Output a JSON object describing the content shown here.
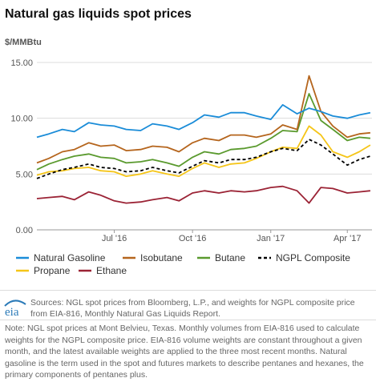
{
  "title": "Natural gas liquids spot prices",
  "chart_data": {
    "type": "line",
    "ylabel": "$/MMBtu",
    "ylim": [
      0,
      15
    ],
    "yticks": [
      "0.00",
      "5.00",
      "10.00",
      "15.00"
    ],
    "xticks": [
      "Jul '16",
      "Oct '16",
      "Jan '17",
      "Apr '17"
    ],
    "xrange": [
      "2016-04-01",
      "2017-04-30"
    ],
    "x": [
      "2016-04-01",
      "2016-04-15",
      "2016-05-01",
      "2016-05-15",
      "2016-06-01",
      "2016-06-15",
      "2016-07-01",
      "2016-07-15",
      "2016-08-01",
      "2016-08-15",
      "2016-09-01",
      "2016-09-15",
      "2016-10-01",
      "2016-10-15",
      "2016-11-01",
      "2016-11-15",
      "2016-12-01",
      "2016-12-15",
      "2017-01-01",
      "2017-01-15",
      "2017-02-01",
      "2017-02-15",
      "2017-03-01",
      "2017-03-15",
      "2017-04-01",
      "2017-04-15",
      "2017-04-28"
    ],
    "series": [
      {
        "name": "Natural Gasoline",
        "color": "#1a8cd8",
        "values": [
          8.3,
          8.6,
          9.0,
          8.8,
          9.6,
          9.4,
          9.3,
          9.0,
          8.9,
          9.5,
          9.3,
          9.0,
          9.6,
          10.3,
          10.1,
          10.5,
          10.5,
          10.2,
          9.9,
          11.2,
          10.4,
          10.9,
          10.6,
          10.2,
          10.0,
          10.3,
          10.5
        ]
      },
      {
        "name": "Isobutane",
        "color": "#b5651d",
        "values": [
          6.0,
          6.4,
          7.0,
          7.2,
          7.8,
          7.5,
          7.6,
          7.1,
          7.2,
          7.5,
          7.4,
          7.0,
          7.8,
          8.2,
          8.0,
          8.5,
          8.5,
          8.3,
          8.6,
          9.4,
          9.0,
          13.8,
          10.6,
          9.3,
          8.3,
          8.6,
          8.7
        ]
      },
      {
        "name": "Butane",
        "color": "#5a9a2e",
        "values": [
          5.4,
          5.9,
          6.3,
          6.6,
          6.8,
          6.5,
          6.4,
          6.0,
          6.1,
          6.3,
          6.0,
          5.7,
          6.5,
          7.0,
          6.8,
          7.2,
          7.3,
          7.5,
          8.2,
          8.9,
          8.8,
          12.2,
          9.8,
          9.0,
          8.0,
          8.3,
          8.2
        ]
      },
      {
        "name": "NGPL Composite",
        "color": "#000000",
        "dashed": true,
        "values": [
          4.6,
          5.0,
          5.4,
          5.6,
          5.9,
          5.6,
          5.5,
          5.2,
          5.3,
          5.6,
          5.3,
          5.1,
          5.7,
          6.2,
          6.0,
          6.3,
          6.3,
          6.5,
          7.0,
          7.3,
          7.1,
          8.1,
          7.6,
          6.8,
          5.8,
          6.3,
          6.6
        ]
      },
      {
        "name": "Propane",
        "color": "#f5c518",
        "values": [
          4.9,
          5.2,
          5.3,
          5.5,
          5.6,
          5.3,
          5.2,
          4.8,
          5.0,
          5.3,
          5.0,
          4.8,
          5.5,
          6.0,
          5.6,
          5.9,
          6.0,
          6.4,
          7.0,
          7.4,
          7.3,
          9.3,
          8.5,
          7.0,
          6.5,
          7.0,
          7.6
        ]
      },
      {
        "name": "Ethane",
        "color": "#9b2335",
        "values": [
          2.8,
          2.9,
          3.0,
          2.7,
          3.4,
          3.1,
          2.6,
          2.4,
          2.5,
          2.7,
          2.9,
          2.6,
          3.3,
          3.5,
          3.3,
          3.5,
          3.4,
          3.5,
          3.8,
          3.9,
          3.5,
          2.4,
          3.8,
          3.7,
          3.3,
          3.4,
          3.5
        ]
      }
    ]
  },
  "sources": "Sources: NGL spot prices from Bloomberg, L.P., and weights for NGPL composite price from EIA-816, Monthly Natural Gas Liquids Report.",
  "note": "Note: NGL spot prices at Mont Belvieu, Texas. Monthly volumes from EIA-816 used to calculate weights for the NGPL composite price. EIA-816 volume weights are constant throughout a given month, and the latest available weights are applied to the three most recent months. Natural gasoline is the term used in the spot and futures markets to describe pentanes and hexanes, the primary components of pentanes plus.",
  "logo_text": "eia"
}
